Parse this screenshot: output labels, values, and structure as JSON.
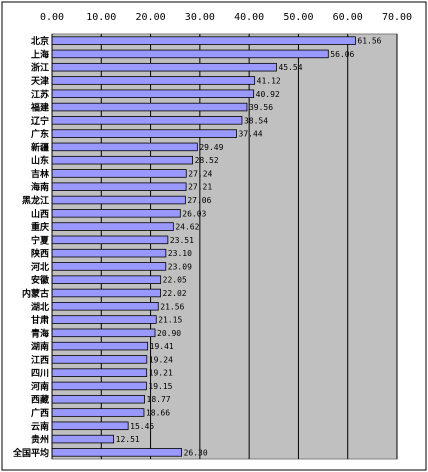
{
  "chart_data": {
    "type": "bar",
    "orientation": "horizontal",
    "categories": [
      "北京",
      "上海",
      "浙江",
      "天津",
      "江苏",
      "福建",
      "辽宁",
      "广东",
      "新疆",
      "山东",
      "吉林",
      "海南",
      "黑龙江",
      "山西",
      "重庆",
      "宁夏",
      "陕西",
      "河北",
      "安徽",
      "内蒙古",
      "湖北",
      "甘肃",
      "青海",
      "湖南",
      "江西",
      "四川",
      "河南",
      "西藏",
      "广西",
      "云南",
      "贵州",
      "全国平均"
    ],
    "values": [
      61.56,
      56.06,
      45.54,
      41.12,
      40.92,
      39.56,
      38.54,
      37.44,
      29.49,
      28.52,
      27.24,
      27.21,
      27.06,
      26.03,
      24.62,
      23.51,
      23.1,
      23.09,
      22.05,
      22.02,
      21.56,
      21.15,
      20.9,
      19.41,
      19.24,
      19.21,
      19.15,
      18.77,
      18.66,
      15.45,
      12.51,
      26.3
    ],
    "value_labels": [
      "61.56",
      "56.06",
      "45.54",
      "41.12",
      "40.92",
      "39.56",
      "38.54",
      "37.44",
      "29.49",
      "28.52",
      "27.24",
      "27.21",
      "27.06",
      "26.03",
      "24.62",
      "23.51",
      "23.10",
      "23.09",
      "22.05",
      "22.02",
      "21.56",
      "21.15",
      "20.90",
      "19.41",
      "19.24",
      "19.21",
      "19.15",
      "18.77",
      "18.66",
      "15.45",
      "12.51",
      "26.30"
    ],
    "xlim": [
      0,
      70
    ],
    "tick_values": [
      0,
      10,
      20,
      30,
      40,
      50,
      60,
      70
    ],
    "tick_labels": [
      "0.00",
      "10.00",
      "20.00",
      "30.00",
      "40.00",
      "50.00",
      "60.00",
      "70.00"
    ],
    "tick_position": "top",
    "grid": true,
    "legend": "none",
    "bar_color": "#9999ff",
    "bar_edge_color": "#000000",
    "plot_bg_color": "#c0c0c0"
  }
}
